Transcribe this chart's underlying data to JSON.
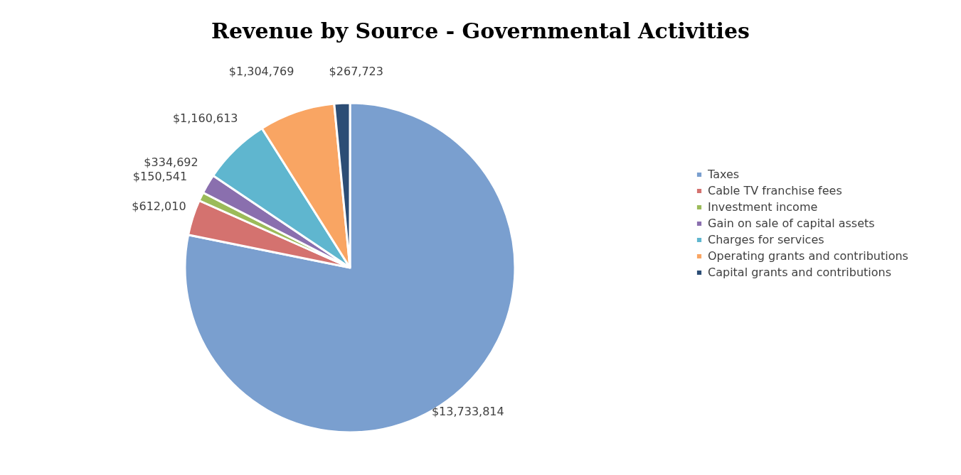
{
  "chart_data": {
    "type": "pie",
    "title": "Revenue by Source - Governmental Activities",
    "categories": [
      "Taxes",
      "Cable TV franchise fees",
      "Investment income",
      "Gain on sale of capital assets",
      "Charges for services",
      "Operating grants and contributions",
      "Capital grants and contributions"
    ],
    "values": [
      13733814,
      612010,
      150541,
      334692,
      1160613,
      1304769,
      267723
    ],
    "value_labels": [
      "$13,733,814",
      "$612,010",
      "$150,541",
      "$334,692",
      "$1,160,613",
      "$1,304,769",
      "$267,723"
    ],
    "colors": [
      "#7a9fcf",
      "#d4726f",
      "#9bbb59",
      "#8a6fae",
      "#5fb6cf",
      "#f9a563",
      "#2c4d75"
    ],
    "legend": "right"
  }
}
